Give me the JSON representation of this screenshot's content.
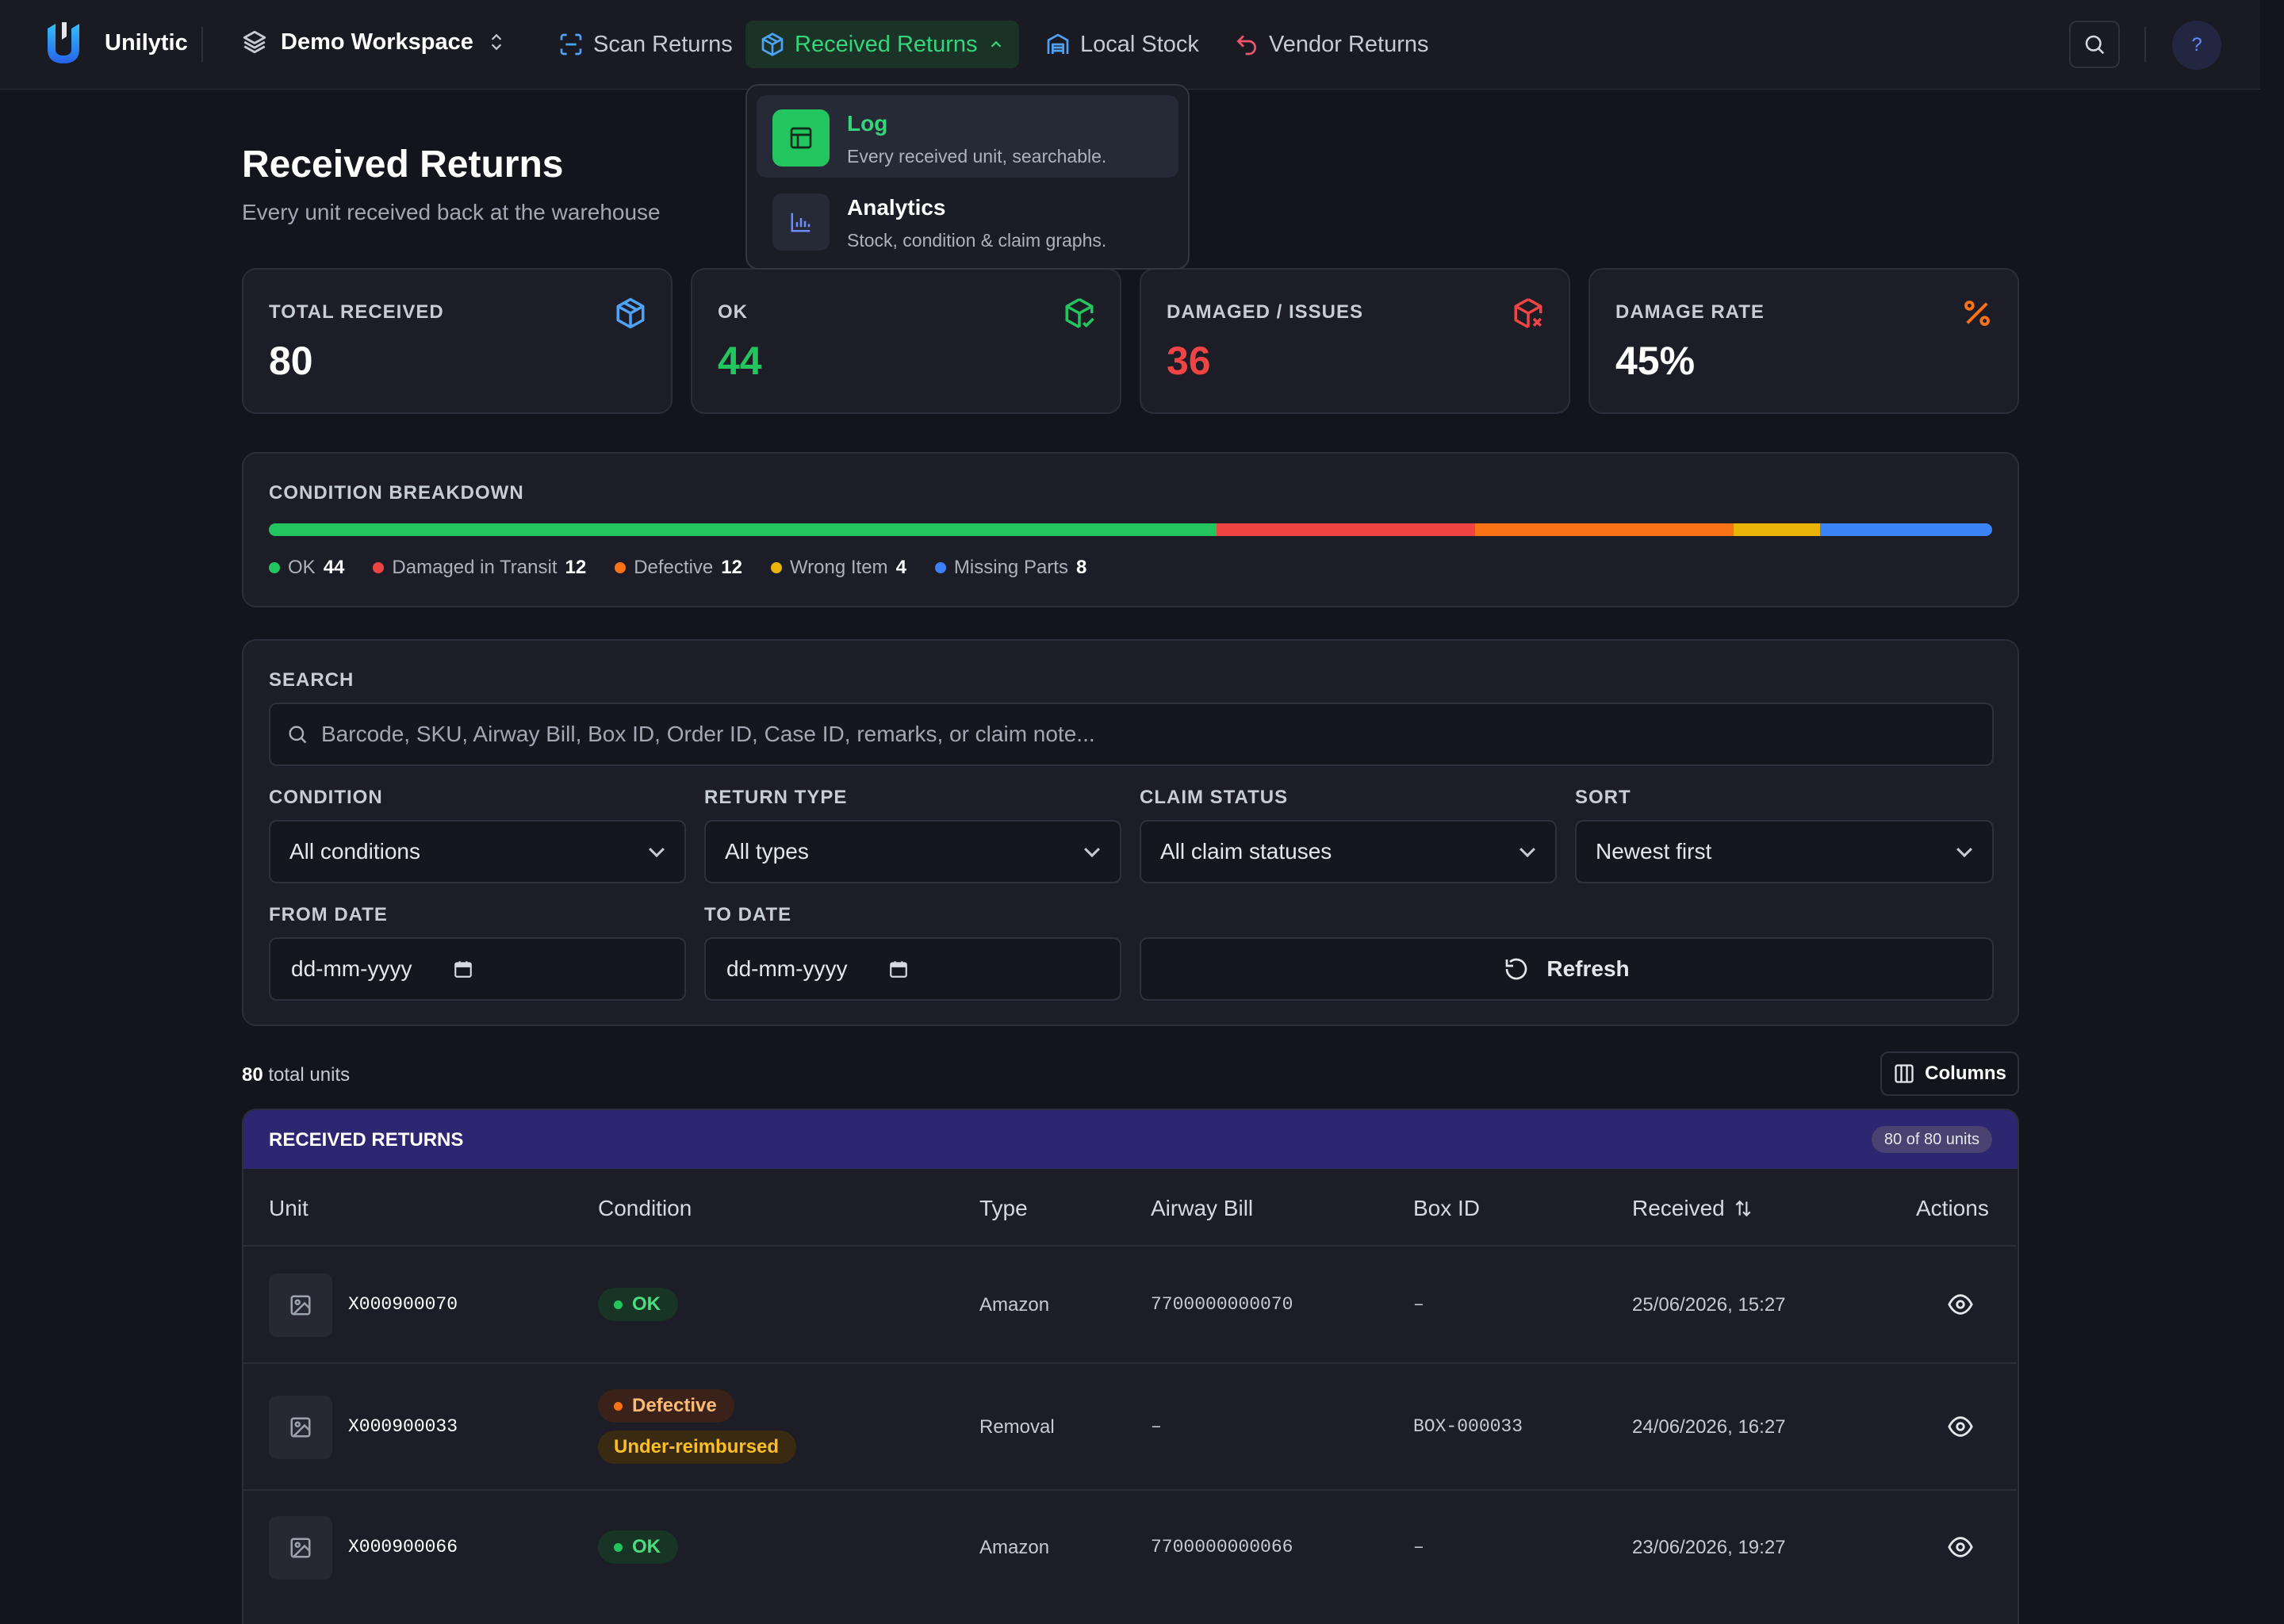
{
  "app": {
    "name": "Unilytic",
    "workspace": "Demo Workspace"
  },
  "nav": {
    "items": [
      {
        "label": "Scan Returns",
        "icon": "scan-icon"
      },
      {
        "label": "Received Returns",
        "icon": "package-icon"
      },
      {
        "label": "Local Stock",
        "icon": "warehouse-icon"
      },
      {
        "label": "Vendor Returns",
        "icon": "undo-icon"
      }
    ],
    "help_label": "?"
  },
  "dropdown": {
    "items": [
      {
        "title": "Log",
        "desc": "Every received unit, searchable.",
        "icon": "table-icon"
      },
      {
        "title": "Analytics",
        "desc": "Stock, condition & claim graphs.",
        "icon": "bar-chart-icon"
      }
    ]
  },
  "page": {
    "title": "Received Returns",
    "subtitle": "Every unit received back at the warehouse"
  },
  "stats": [
    {
      "label": "TOTAL RECEIVED",
      "value": "80",
      "color": "#ffffff",
      "icon": "package-icon"
    },
    {
      "label": "OK",
      "value": "44",
      "color": "#22c55e",
      "icon": "package-check-icon"
    },
    {
      "label": "DAMAGED / ISSUES",
      "value": "36",
      "color": "#ef4444",
      "icon": "package-x-icon"
    },
    {
      "label": "DAMAGE RATE",
      "value": "45%",
      "color": "#ffffff",
      "icon": "percent-icon"
    }
  ],
  "breakdown": {
    "label": "CONDITION BREAKDOWN",
    "segments": [
      {
        "label": "OK",
        "count": "44",
        "value": 44,
        "color": "#22c55e"
      },
      {
        "label": "Damaged in Transit",
        "count": "12",
        "value": 12,
        "color": "#ef4444"
      },
      {
        "label": "Defective",
        "count": "12",
        "value": 12,
        "color": "#f97316"
      },
      {
        "label": "Wrong Item",
        "count": "4",
        "value": 4,
        "color": "#eab308"
      },
      {
        "label": "Missing Parts",
        "count": "8",
        "value": 8,
        "color": "#3b82f6"
      }
    ]
  },
  "filters": {
    "search_label": "SEARCH",
    "search_placeholder": "Barcode, SKU, Airway Bill, Box ID, Order ID, Case ID, remarks, or claim note...",
    "condition_label": "CONDITION",
    "condition_value": "All conditions",
    "type_label": "RETURN TYPE",
    "type_value": "All types",
    "claim_label": "CLAIM STATUS",
    "claim_value": "All claim statuses",
    "sort_label": "SORT",
    "sort_value": "Newest first",
    "from_label": "FROM DATE",
    "from_value": "dd-mm-yyyy",
    "to_label": "TO DATE",
    "to_value": "dd-mm-yyyy",
    "refresh_label": "Refresh"
  },
  "summary": {
    "count": "80",
    "suffix": "total units",
    "columns_label": "Columns"
  },
  "table": {
    "header_title": "RECEIVED RETURNS",
    "header_badge": "80 of 80 units",
    "columns": [
      "Unit",
      "Condition",
      "Type",
      "Airway Bill",
      "Box ID",
      "Received",
      "Actions"
    ],
    "rows": [
      {
        "unit": "X000900070",
        "badges": [
          {
            "label": "OK",
            "dot": "#22c55e",
            "bg": "#173424",
            "fg": "#4ade80"
          }
        ],
        "type": "Amazon",
        "airway": "7700000000070",
        "box": "–",
        "received": "25/06/2026, 15:27"
      },
      {
        "unit": "X000900033",
        "badges": [
          {
            "label": "Defective",
            "dot": "#f97316",
            "bg": "#3a2119",
            "fg": "#fdba74"
          },
          {
            "label": "Under-reimbursed",
            "dot": "",
            "bg": "#3a2a12",
            "fg": "#fbbf24"
          }
        ],
        "type": "Removal",
        "airway": "–",
        "box": "BOX-000033",
        "received": "24/06/2026, 16:27"
      },
      {
        "unit": "X000900066",
        "badges": [
          {
            "label": "OK",
            "dot": "#22c55e",
            "bg": "#173424",
            "fg": "#4ade80"
          }
        ],
        "type": "Amazon",
        "airway": "7700000000066",
        "box": "–",
        "received": "23/06/2026, 19:27"
      }
    ]
  }
}
